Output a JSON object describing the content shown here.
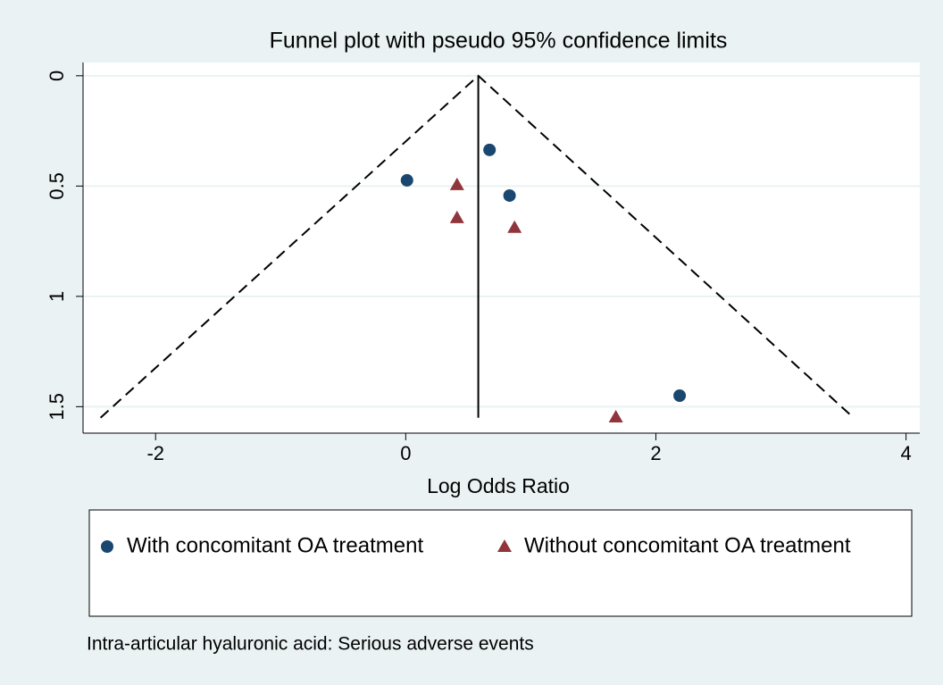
{
  "chart_data": {
    "type": "scatter",
    "title": "Funnel plot with pseudo 95% confidence limits",
    "x_label": "Log Odds Ratio",
    "note": "Intra-articular hyaluronic acid: Serious adverse events",
    "xlim": [
      -2.58,
      4.11
    ],
    "xticks": [
      -2,
      0,
      2,
      4
    ],
    "ylim": [
      -0.06,
      1.62
    ],
    "yticks": [
      0,
      0.5,
      1,
      1.5
    ],
    "y_reversed": true,
    "grid": true,
    "funnel": {
      "x": [
        -2.44,
        0.58,
        3.58
      ],
      "y": [
        1.55,
        0,
        1.55
      ],
      "color": "#000000"
    },
    "pooled": {
      "x": [
        0.58,
        0.58
      ],
      "y": [
        0,
        1.55
      ],
      "color": "#000000"
    },
    "series": [
      {
        "name": "With concomitant OA treatment",
        "color": "#1a476f",
        "marker": "circle",
        "x": [
          0.67,
          0.01,
          0.83,
          2.19
        ],
        "values": [
          0.336,
          0.474,
          0.543,
          1.45
        ]
      },
      {
        "name": "Without concomitant OA treatment",
        "color": "#90353b",
        "marker": "triangle",
        "x": [
          0.41,
          0.41,
          0.87,
          1.68
        ],
        "values": [
          0.494,
          0.644,
          0.688,
          1.547
        ]
      }
    ]
  }
}
